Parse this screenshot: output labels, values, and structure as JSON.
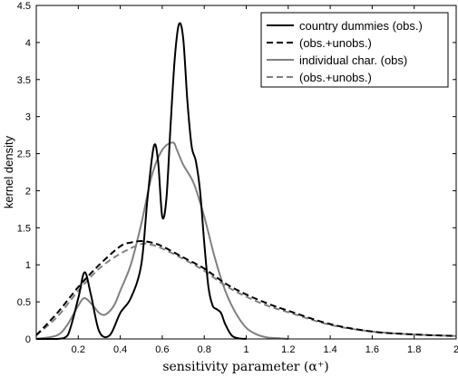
{
  "chart_data": {
    "type": "line",
    "title": "",
    "xlabel": "sensitivity parameter (α⁺)",
    "ylabel": "kernel density",
    "xlim": [
      0,
      2
    ],
    "ylim": [
      0,
      4.5
    ],
    "xticks": [
      "0.2",
      "0.4",
      "0.6",
      "0.8",
      "1",
      "1.2",
      "1.4",
      "1.6",
      "1.8",
      "2"
    ],
    "yticks": [
      "0",
      "0.5",
      "1",
      "1.5",
      "2",
      "2.5",
      "3",
      "3.5",
      "4",
      "4.5"
    ],
    "grid": false,
    "legend_position": "top-right",
    "series": [
      {
        "name": "country dummies  (obs.)",
        "color": "#000000",
        "dash": "solid",
        "x": [
          0,
          0.1,
          0.15,
          0.2,
          0.23,
          0.26,
          0.3,
          0.35,
          0.4,
          0.45,
          0.5,
          0.53,
          0.56,
          0.58,
          0.6,
          0.62,
          0.64,
          0.66,
          0.68,
          0.7,
          0.72,
          0.74,
          0.76,
          0.78,
          0.8,
          0.82,
          0.84,
          0.86,
          0.88,
          0.9,
          0.93,
          0.96,
          1.0
        ],
        "y": [
          0,
          0,
          0.05,
          0.55,
          0.9,
          0.6,
          0.1,
          0.05,
          0.35,
          0.55,
          1.0,
          1.9,
          2.6,
          2.4,
          1.65,
          1.9,
          2.9,
          3.8,
          4.25,
          4.05,
          3.2,
          2.6,
          2.4,
          2.0,
          1.3,
          0.7,
          0.45,
          0.4,
          0.35,
          0.2,
          0.05,
          0.01,
          0
        ]
      },
      {
        "name": "(obs.+unobs.)",
        "color": "#000000",
        "dash": "dashed",
        "x": [
          0,
          0.1,
          0.2,
          0.3,
          0.4,
          0.45,
          0.5,
          0.55,
          0.6,
          0.7,
          0.8,
          0.9,
          1.0,
          1.1,
          1.2,
          1.4,
          1.6,
          1.8,
          2.0
        ],
        "y": [
          0.05,
          0.35,
          0.7,
          1.0,
          1.25,
          1.3,
          1.32,
          1.3,
          1.25,
          1.1,
          0.95,
          0.75,
          0.6,
          0.48,
          0.38,
          0.2,
          0.1,
          0.06,
          0.04
        ]
      },
      {
        "name": "individual char. (obs)",
        "color": "#808080",
        "dash": "solid",
        "x": [
          0,
          0.1,
          0.15,
          0.2,
          0.23,
          0.27,
          0.3,
          0.33,
          0.37,
          0.4,
          0.45,
          0.5,
          0.55,
          0.6,
          0.65,
          0.67,
          0.7,
          0.75,
          0.8,
          0.85,
          0.9,
          0.95,
          1.0,
          1.05,
          1.1,
          1.15,
          1.2
        ],
        "y": [
          0,
          0.05,
          0.2,
          0.45,
          0.55,
          0.45,
          0.35,
          0.33,
          0.45,
          0.65,
          1.0,
          1.55,
          2.2,
          2.55,
          2.65,
          2.55,
          2.35,
          2.1,
          1.65,
          1.1,
          0.65,
          0.35,
          0.15,
          0.06,
          0.02,
          0.01,
          0
        ]
      },
      {
        "name": "(obs.+unobs.)",
        "color": "#808080",
        "dash": "dashed",
        "x": [
          0,
          0.1,
          0.2,
          0.3,
          0.4,
          0.5,
          0.55,
          0.6,
          0.7,
          0.8,
          0.9,
          1.0,
          1.1,
          1.2,
          1.4,
          1.6,
          1.8,
          2.0
        ],
        "y": [
          0.05,
          0.3,
          0.65,
          0.95,
          1.15,
          1.28,
          1.27,
          1.22,
          1.08,
          0.92,
          0.72,
          0.57,
          0.45,
          0.36,
          0.19,
          0.1,
          0.06,
          0.04
        ]
      }
    ]
  }
}
